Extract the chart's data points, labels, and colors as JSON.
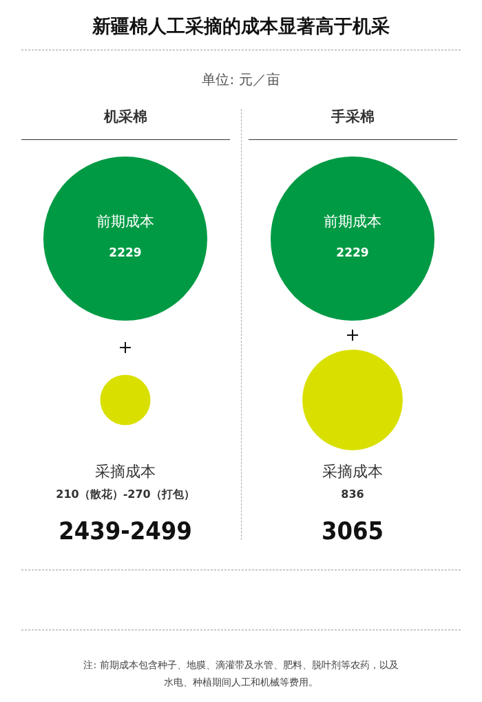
{
  "chart_data": [
    {
      "type": "other",
      "title": "新疆棉人工采摘的成本显著高于机采",
      "subtitle": "单位: 元／亩",
      "annotations": [
        "注: 前期成本包含种子、地膜、滴灌带及水管、肥料、脱叶剂等农药，以及水电、种植期间人工和机械等费用。"
      ]
    },
    {
      "type": "other",
      "title": "机采棉",
      "categories": [
        "前期成本",
        "采摘成本"
      ],
      "values": [
        2229,
        210
      ],
      "value_labels": [
        "2229",
        "210（散花）-270（打包）"
      ],
      "colors": [
        "#009a44",
        "#d9e000"
      ],
      "totals": [
        "2439-2499"
      ]
    },
    {
      "type": "other",
      "title": "手采棉",
      "categories": [
        "前期成本",
        "采摘成本"
      ],
      "values": [
        2229,
        836
      ],
      "value_labels": [
        "2229",
        "836"
      ],
      "colors": [
        "#009a44",
        "#d9e000"
      ],
      "totals": [
        "3065"
      ]
    }
  ]
}
